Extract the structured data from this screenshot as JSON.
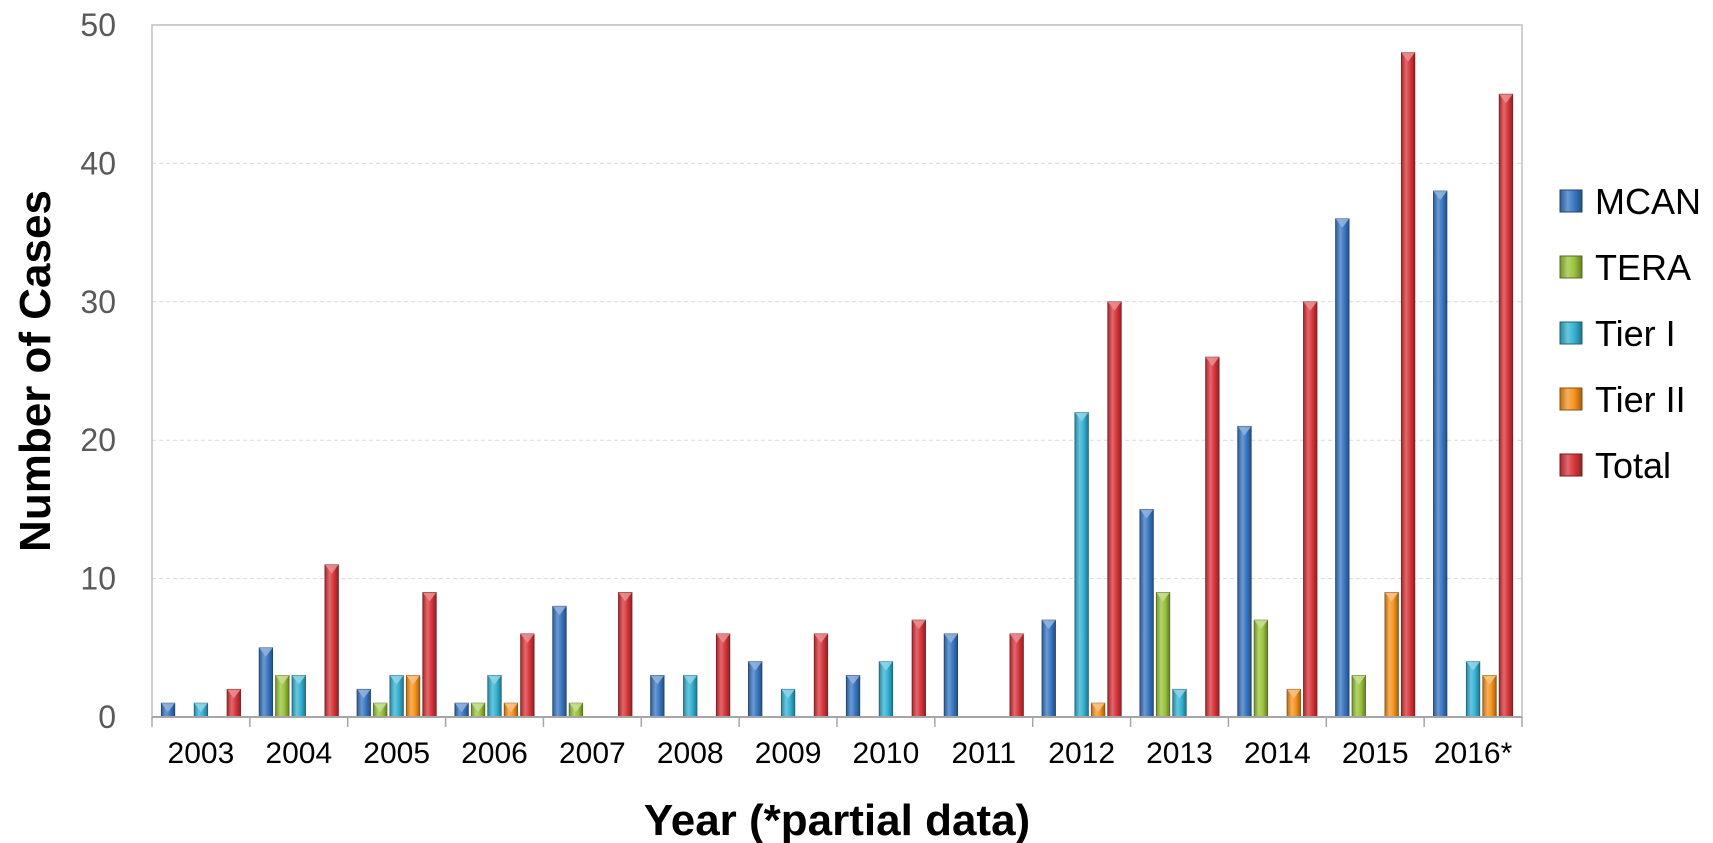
{
  "chart_data": {
    "type": "bar",
    "title": "",
    "xlabel": "Year (*partial data)",
    "ylabel": "Number of Cases",
    "ylim": [
      0,
      50
    ],
    "yticks": [
      0,
      10,
      20,
      30,
      40,
      50
    ],
    "grid": true,
    "legend_position": "right",
    "categories": [
      "2003",
      "2004",
      "2005",
      "2006",
      "2007",
      "2008",
      "2009",
      "2010",
      "2011",
      "2012",
      "2013",
      "2014",
      "2015",
      "2016*"
    ],
    "series": [
      {
        "name": "MCAN",
        "color": "#3a78c4",
        "values": [
          1,
          5,
          2,
          1,
          8,
          3,
          4,
          3,
          6,
          7,
          15,
          21,
          36,
          38
        ]
      },
      {
        "name": "TERA",
        "color": "#9bc43c",
        "values": [
          0,
          3,
          1,
          1,
          1,
          0,
          0,
          0,
          0,
          0,
          9,
          7,
          3,
          0
        ]
      },
      {
        "name": "Tier I",
        "color": "#35b3d4",
        "values": [
          1,
          3,
          3,
          3,
          0,
          3,
          2,
          4,
          0,
          22,
          2,
          0,
          0,
          4
        ]
      },
      {
        "name": "Tier II",
        "color": "#f7941d",
        "values": [
          0,
          0,
          3,
          1,
          0,
          0,
          0,
          0,
          0,
          1,
          0,
          2,
          9,
          3
        ]
      },
      {
        "name": "Total",
        "color": "#d9363b",
        "values": [
          2,
          11,
          9,
          6,
          9,
          6,
          6,
          7,
          6,
          30,
          26,
          30,
          48,
          45
        ]
      }
    ]
  }
}
